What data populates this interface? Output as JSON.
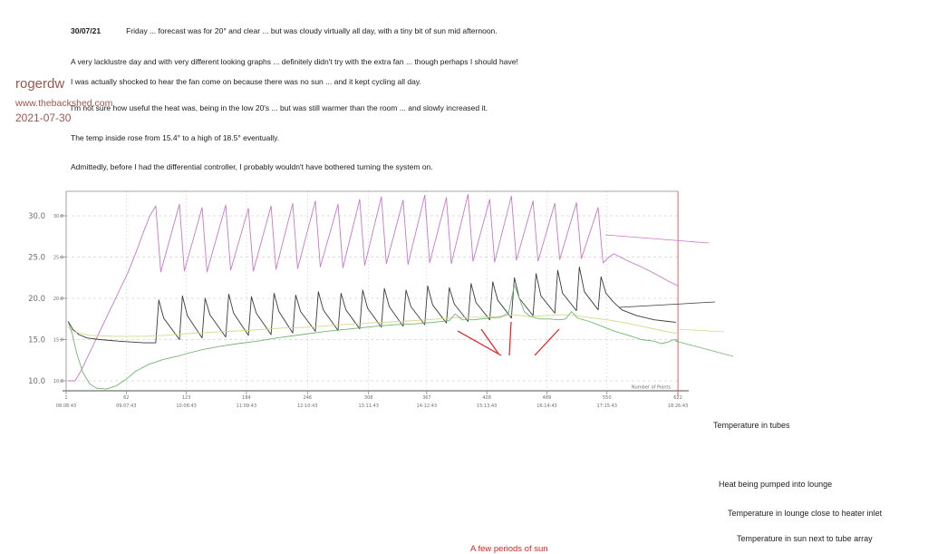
{
  "byline": {
    "author": "rogerdw",
    "site": "www.thebackshed.com",
    "date": "2021-07-30"
  },
  "post": {
    "date_label": "30/07/21",
    "first_line": "Friday  ...  forecast was for 20° and clear  ...  but was cloudy virtually all day, with a tiny bit of sun mid afternoon.",
    "paragraphs": [
      "A very lacklustre day and with very different looking graphs  ...  definitely didn't try with the extra fan  ...  though perhaps I should have!",
      "I was actually shocked to hear the fan come on because there was no sun  ...  and it kept cycling all day.",
      "I'm not sure how useful the heat was, being in the low 20's  ...  but was still warmer than the room  ...  and slowly increased it.",
      "The temp inside rose from 15.4° to a high of 18.5° eventually.",
      "Admittedly, before I had the differential controller, I probably wouldn't have bothered turning the system on."
    ]
  },
  "chart_data": {
    "type": "line",
    "title": "",
    "xlabel": "Number of Points",
    "ylabel": "",
    "xlim": [
      1,
      622
    ],
    "ylim": [
      8.8,
      33.0
    ],
    "grid": true,
    "legend_position": "right",
    "y_ticks": [
      30.0,
      25.0,
      20.0,
      15.0,
      10.0
    ],
    "y_tick_labels": [
      "30.0",
      "25.0",
      "20.0",
      "15.0",
      "10.0"
    ],
    "x_ticks": [
      {
        "point": "1",
        "time": "08:08:43"
      },
      {
        "point": "62",
        "time": "09:07:43"
      },
      {
        "point": "123",
        "time": "10:08:43"
      },
      {
        "point": "184",
        "time": "11:09:43"
      },
      {
        "point": "246",
        "time": "12:10:43"
      },
      {
        "point": "308",
        "time": "13:11:43"
      },
      {
        "point": "367",
        "time": "14:12:43"
      },
      {
        "point": "428",
        "time": "15:13:43"
      },
      {
        "point": "489",
        "time": "16:14:43"
      },
      {
        "point": "550",
        "time": "17:15:43"
      },
      {
        "point": "622",
        "time": "18:26:43"
      }
    ],
    "annotation": {
      "text": "A few periods of sun",
      "color": "#e01f1f"
    },
    "colors": {
      "grid": "#bcbcbc",
      "axis": "#8a8a8a",
      "tick_text": "#6e6e6e",
      "cursor_line": "#e05050"
    },
    "series": [
      {
        "name": "Temperature in tubes",
        "color": "#c778c7",
        "points": [
          [
            3,
            10.0
          ],
          [
            10,
            10.0
          ],
          [
            16,
            11.2
          ],
          [
            24,
            13.2
          ],
          [
            32,
            15.2
          ],
          [
            40,
            17.2
          ],
          [
            48,
            19.2
          ],
          [
            56,
            21.2
          ],
          [
            64,
            23.2
          ],
          [
            72,
            25.6
          ],
          [
            80,
            28.2
          ],
          [
            86,
            30.0
          ],
          [
            92,
            31.2
          ],
          [
            97,
            23.2
          ],
          [
            116,
            31.4
          ],
          [
            121,
            23.3
          ],
          [
            139,
            31.0
          ],
          [
            144,
            23.2
          ],
          [
            163,
            31.3
          ],
          [
            168,
            23.4
          ],
          [
            186,
            30.9
          ],
          [
            191,
            23.3
          ],
          [
            209,
            31.2
          ],
          [
            214,
            23.5
          ],
          [
            231,
            31.5
          ],
          [
            236,
            23.6
          ],
          [
            254,
            31.8
          ],
          [
            259,
            23.8
          ],
          [
            277,
            31.4
          ],
          [
            282,
            23.7
          ],
          [
            299,
            32.0
          ],
          [
            304,
            24.0
          ],
          [
            321,
            32.3
          ],
          [
            326,
            24.2
          ],
          [
            343,
            31.9
          ],
          [
            348,
            24.1
          ],
          [
            365,
            32.5
          ],
          [
            370,
            24.3
          ],
          [
            387,
            32.2
          ],
          [
            392,
            24.2
          ],
          [
            409,
            32.6
          ],
          [
            414,
            24.5
          ],
          [
            431,
            32.0
          ],
          [
            436,
            24.4
          ],
          [
            453,
            32.4
          ],
          [
            458,
            24.6
          ],
          [
            475,
            31.8
          ],
          [
            480,
            24.5
          ],
          [
            497,
            31.5
          ],
          [
            502,
            24.7
          ],
          [
            519,
            31.6
          ],
          [
            524,
            24.8
          ],
          [
            541,
            31.0
          ],
          [
            546,
            24.3
          ],
          [
            552,
            25.0
          ],
          [
            557,
            25.4
          ],
          [
            570,
            24.6
          ],
          [
            585,
            23.8
          ],
          [
            600,
            22.9
          ],
          [
            612,
            22.1
          ],
          [
            622,
            21.5
          ]
        ]
      },
      {
        "name": "Heat being pumped into lounge",
        "color": "#3a3a3a",
        "points": [
          [
            3,
            17.2
          ],
          [
            8,
            16.2
          ],
          [
            14,
            15.6
          ],
          [
            22,
            15.2
          ],
          [
            35,
            15.0
          ],
          [
            55,
            14.8
          ],
          [
            80,
            14.6
          ],
          [
            92,
            14.6
          ],
          [
            95,
            19.8
          ],
          [
            100,
            17.6
          ],
          [
            116,
            15.0
          ],
          [
            119,
            20.3
          ],
          [
            124,
            17.9
          ],
          [
            139,
            15.2
          ],
          [
            142,
            20.0
          ],
          [
            147,
            18.0
          ],
          [
            163,
            15.3
          ],
          [
            166,
            20.5
          ],
          [
            171,
            18.2
          ],
          [
            186,
            15.5
          ],
          [
            189,
            20.2
          ],
          [
            194,
            18.2
          ],
          [
            209,
            15.6
          ],
          [
            212,
            20.6
          ],
          [
            217,
            18.4
          ],
          [
            231,
            15.8
          ],
          [
            234,
            20.4
          ],
          [
            239,
            18.4
          ],
          [
            254,
            16.0
          ],
          [
            257,
            20.8
          ],
          [
            262,
            18.6
          ],
          [
            277,
            16.1
          ],
          [
            280,
            20.6
          ],
          [
            285,
            18.6
          ],
          [
            299,
            16.3
          ],
          [
            302,
            21.0
          ],
          [
            307,
            18.8
          ],
          [
            321,
            16.5
          ],
          [
            324,
            21.2
          ],
          [
            329,
            19.0
          ],
          [
            343,
            16.6
          ],
          [
            346,
            21.0
          ],
          [
            351,
            19.0
          ],
          [
            365,
            16.8
          ],
          [
            368,
            21.5
          ],
          [
            373,
            19.2
          ],
          [
            387,
            17.0
          ],
          [
            390,
            21.3
          ],
          [
            395,
            19.3
          ],
          [
            409,
            17.2
          ],
          [
            412,
            21.8
          ],
          [
            417,
            19.5
          ],
          [
            431,
            17.4
          ],
          [
            434,
            22.0
          ],
          [
            439,
            19.8
          ],
          [
            453,
            17.6
          ],
          [
            456,
            22.5
          ],
          [
            461,
            20.0
          ],
          [
            475,
            17.9
          ],
          [
            478,
            23.0
          ],
          [
            483,
            20.3
          ],
          [
            497,
            18.2
          ],
          [
            500,
            23.4
          ],
          [
            505,
            20.6
          ],
          [
            519,
            18.5
          ],
          [
            522,
            23.8
          ],
          [
            527,
            20.8
          ],
          [
            541,
            18.6
          ],
          [
            544,
            22.6
          ],
          [
            549,
            20.6
          ],
          [
            556,
            19.6
          ],
          [
            565,
            18.6
          ],
          [
            580,
            17.9
          ],
          [
            598,
            17.4
          ],
          [
            612,
            17.2
          ],
          [
            620,
            17.1
          ]
        ]
      },
      {
        "name": "Temperature in lounge close to heater inlet",
        "color": "#d6d88c",
        "points": [
          [
            3,
            16.5
          ],
          [
            10,
            15.9
          ],
          [
            25,
            15.5
          ],
          [
            50,
            15.4
          ],
          [
            80,
            15.4
          ],
          [
            100,
            15.5
          ],
          [
            123,
            15.7
          ],
          [
            150,
            15.9
          ],
          [
            184,
            16.1
          ],
          [
            220,
            16.4
          ],
          [
            246,
            16.5
          ],
          [
            280,
            16.8
          ],
          [
            308,
            17.0
          ],
          [
            340,
            17.2
          ],
          [
            367,
            17.4
          ],
          [
            390,
            17.6
          ],
          [
            405,
            17.7
          ],
          [
            420,
            17.7
          ],
          [
            440,
            17.8
          ],
          [
            456,
            18.0
          ],
          [
            470,
            17.8
          ],
          [
            489,
            17.9
          ],
          [
            502,
            18.0
          ],
          [
            514,
            18.0
          ],
          [
            530,
            17.7
          ],
          [
            550,
            17.4
          ],
          [
            570,
            17.0
          ],
          [
            590,
            16.5
          ],
          [
            605,
            16.1
          ],
          [
            622,
            15.7
          ]
        ]
      },
      {
        "name": "Temperature in sun next to tube array",
        "color": "#72b572",
        "points": [
          [
            3,
            17.1
          ],
          [
            7,
            15.8
          ],
          [
            12,
            13.2
          ],
          [
            18,
            11.0
          ],
          [
            25,
            9.6
          ],
          [
            32,
            9.1
          ],
          [
            42,
            9.0
          ],
          [
            52,
            9.4
          ],
          [
            62,
            10.2
          ],
          [
            72,
            11.2
          ],
          [
            85,
            12.0
          ],
          [
            100,
            12.6
          ],
          [
            115,
            13.0
          ],
          [
            123,
            13.3
          ],
          [
            140,
            13.8
          ],
          [
            158,
            14.2
          ],
          [
            175,
            14.5
          ],
          [
            195,
            14.8
          ],
          [
            215,
            15.2
          ],
          [
            240,
            15.6
          ],
          [
            265,
            16.0
          ],
          [
            290,
            16.3
          ],
          [
            315,
            16.6
          ],
          [
            335,
            16.8
          ],
          [
            355,
            16.9
          ],
          [
            375,
            17.1
          ],
          [
            390,
            17.3
          ],
          [
            396,
            18.1
          ],
          [
            403,
            17.4
          ],
          [
            415,
            17.4
          ],
          [
            430,
            17.6
          ],
          [
            442,
            17.7
          ],
          [
            450,
            18.2
          ],
          [
            456,
            21.6
          ],
          [
            461,
            20.0
          ],
          [
            466,
            18.4
          ],
          [
            472,
            17.8
          ],
          [
            482,
            17.5
          ],
          [
            492,
            17.5
          ],
          [
            502,
            17.4
          ],
          [
            508,
            17.5
          ],
          [
            514,
            18.4
          ],
          [
            520,
            17.6
          ],
          [
            532,
            17.2
          ],
          [
            545,
            16.6
          ],
          [
            558,
            16.0
          ],
          [
            572,
            15.5
          ],
          [
            585,
            15.0
          ],
          [
            598,
            14.8
          ],
          [
            605,
            14.5
          ],
          [
            612,
            14.7
          ],
          [
            618,
            15.0
          ],
          [
            622,
            14.9
          ]
        ]
      }
    ]
  }
}
